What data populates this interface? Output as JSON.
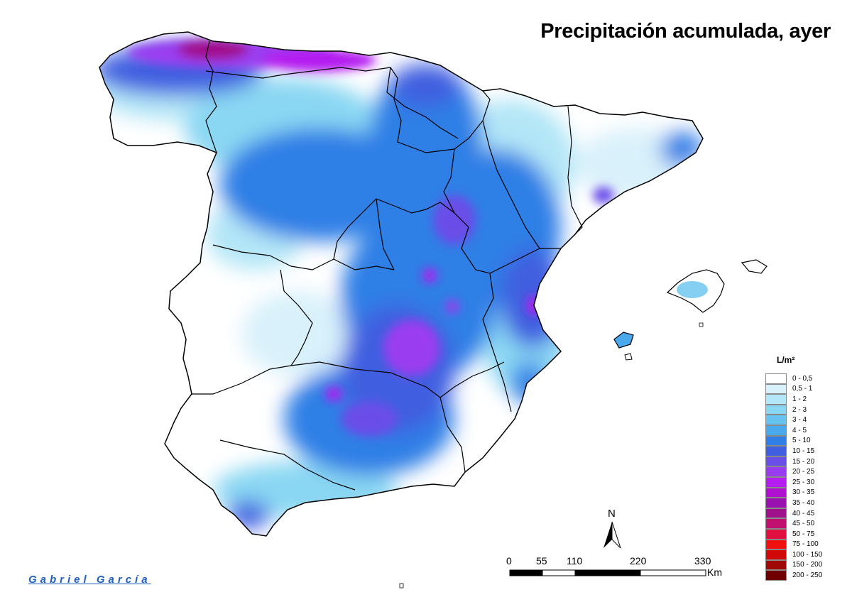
{
  "title": "Precipitación acumulada, ayer",
  "author": "Gabriel García",
  "legend": {
    "unit": "L/m²",
    "items": [
      {
        "label": "0 - 0,5",
        "color": "#ffffff"
      },
      {
        "label": "0,5 - 1",
        "color": "#d9f1fb"
      },
      {
        "label": "1 - 2",
        "color": "#b3e6f7"
      },
      {
        "label": "2 - 3",
        "color": "#8ad7f3"
      },
      {
        "label": "3 - 4",
        "color": "#66c3f0"
      },
      {
        "label": "4 - 5",
        "color": "#4aa8ec"
      },
      {
        "label": "5 - 10",
        "color": "#2f7fe6"
      },
      {
        "label": "10 - 15",
        "color": "#3f5fe0"
      },
      {
        "label": "15 - 20",
        "color": "#6a4ee8"
      },
      {
        "label": "20 - 25",
        "color": "#9a3cf0"
      },
      {
        "label": "25 - 30",
        "color": "#b41ef0"
      },
      {
        "label": "30 - 35",
        "color": "#b010d0"
      },
      {
        "label": "35 - 40",
        "color": "#9a10b0"
      },
      {
        "label": "40 - 45",
        "color": "#a0108a"
      },
      {
        "label": "45 - 50",
        "color": "#c01070"
      },
      {
        "label": "50 - 75",
        "color": "#e01040"
      },
      {
        "label": "75 - 100",
        "color": "#f01010"
      },
      {
        "label": "100 - 150",
        "color": "#d00808"
      },
      {
        "label": "150 - 200",
        "color": "#a00808"
      },
      {
        "label": "200 - 250",
        "color": "#700000"
      }
    ]
  },
  "scale": {
    "labels": [
      "0",
      "55",
      "110",
      "220",
      "330"
    ],
    "unit": "Km"
  },
  "north_arrow": {
    "label": "N"
  }
}
